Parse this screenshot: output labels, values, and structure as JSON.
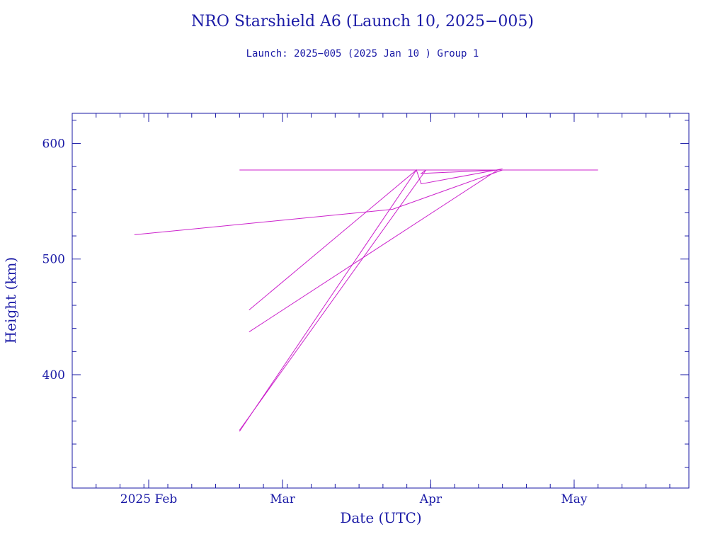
{
  "chart_data": {
    "type": "line",
    "title": "NRO Starshield A6 (Launch 10, 2025−005)",
    "subtitle": "Launch: 2025−005  (2025 Jan 10 )  Group 1",
    "xlabel": "Date (UTC)",
    "ylabel": "Height (km)",
    "xlim": [
      "2025-01-16",
      "2025-05-25"
    ],
    "ylim": [
      302,
      626
    ],
    "x_ticks": [
      {
        "date": "2025-02-01",
        "label": "2025 Feb"
      },
      {
        "date": "2025-03-01",
        "label": "Mar"
      },
      {
        "date": "2025-04-01",
        "label": "Apr"
      },
      {
        "date": "2025-05-01",
        "label": "May"
      }
    ],
    "y_ticks": [
      {
        "value": 400,
        "label": "400"
      },
      {
        "value": 500,
        "label": "500"
      },
      {
        "value": 600,
        "label": "600"
      }
    ],
    "grid": false,
    "series": [
      {
        "values": [
          [
            "2025-01-29",
            521
          ],
          [
            "2025-03-24",
            543
          ],
          [
            "2025-04-16",
            577
          ]
        ]
      },
      {
        "values": [
          [
            "2025-02-20",
            577
          ],
          [
            "2025-05-06",
            577
          ]
        ]
      },
      {
        "values": [
          [
            "2025-02-22",
            456
          ],
          [
            "2025-03-29",
            577
          ],
          [
            "2025-04-16",
            577
          ]
        ]
      },
      {
        "values": [
          [
            "2025-02-22",
            437
          ],
          [
            "2025-04-15",
            577
          ],
          [
            "2025-04-19",
            577
          ]
        ]
      },
      {
        "values": [
          [
            "2025-02-20",
            352
          ],
          [
            "2025-03-31",
            577
          ],
          [
            "2025-03-30",
            574
          ],
          [
            "2025-04-15",
            577
          ]
        ]
      },
      {
        "values": [
          [
            "2025-02-20",
            351
          ],
          [
            "2025-03-29",
            577
          ],
          [
            "2025-03-30",
            565
          ],
          [
            "2025-04-16",
            578
          ]
        ]
      }
    ]
  },
  "colors": {
    "axis": "#1a1aa6",
    "series": "#cc22cc"
  }
}
